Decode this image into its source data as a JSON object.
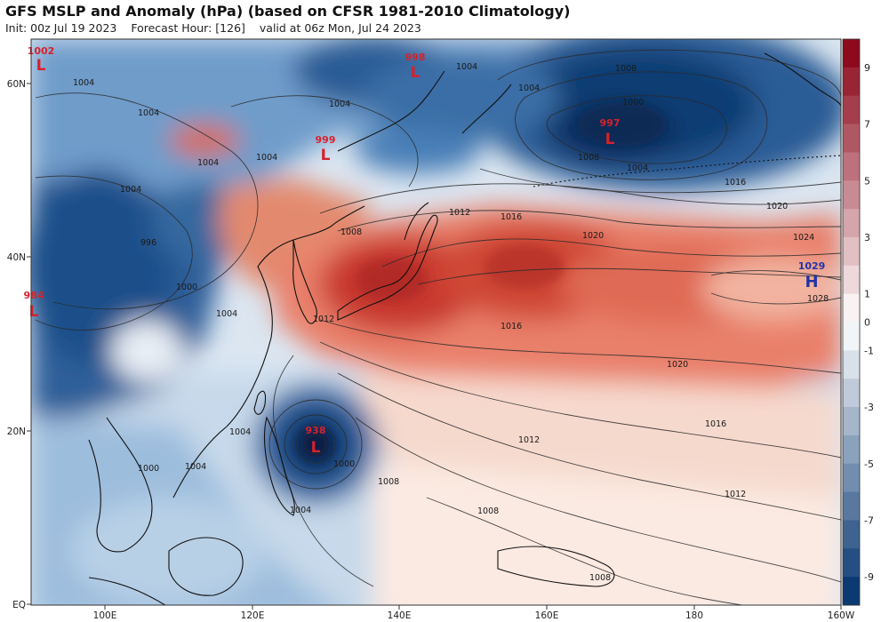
{
  "header": {
    "title": "GFS MSLP and Anomaly (hPa) (based on CFSR 1981-2010 Climatology)",
    "init": "Init: 00z Jul 19 2023",
    "forecast_hour": "Forecast Hour: [126]",
    "valid": "valid at 06z Mon, Jul 24 2023"
  },
  "axes": {
    "lat_labels": [
      "60N",
      "40N",
      "20N",
      "EQ"
    ],
    "lon_labels": [
      "100E",
      "120E",
      "140E",
      "160E",
      "180",
      "160W"
    ]
  },
  "colorbar": {
    "ticks": [
      "9",
      "8",
      "7",
      "6",
      "5",
      "4",
      "3",
      "2",
      "1",
      "0",
      "-1",
      "-2",
      "-3",
      "-4",
      "-5",
      "-6",
      "-7",
      "-8",
      "-9"
    ],
    "labeled_ticks": [
      "9",
      "7",
      "5",
      "3",
      "1",
      "0",
      "-1",
      "-3",
      "-5",
      "-7",
      "-9"
    ],
    "low_color": "#0b3a73",
    "high_color": "#8c0a1c",
    "neutral_color": "#ffffff"
  },
  "pressure_centers": [
    {
      "type": "L",
      "value": "1002",
      "color": "#d8212b"
    },
    {
      "type": "L",
      "value": "998",
      "color": "#d8212b"
    },
    {
      "type": "L",
      "value": "999",
      "color": "#d8212b"
    },
    {
      "type": "L",
      "value": "997",
      "color": "#d8212b"
    },
    {
      "type": "L",
      "value": "984",
      "color": "#d8212b"
    },
    {
      "type": "L",
      "value": "938",
      "color": "#d8212b"
    },
    {
      "type": "H",
      "value": "1029",
      "color": "#2233a8"
    }
  ],
  "isobar_labels": [
    "1004",
    "1004",
    "1004",
    "1004",
    "1004",
    "1004",
    "1008",
    "1000",
    "1008",
    "1004",
    "1004",
    "1000",
    "1004",
    "996",
    "1004",
    "1012",
    "1016",
    "1016",
    "1020",
    "1020",
    "1024",
    "1028",
    "1008",
    "1012",
    "1016",
    "1016",
    "1020",
    "1012",
    "1012",
    "1008",
    "1004",
    "1004",
    "1000",
    "1008",
    "1008",
    "1004",
    "1000"
  ]
}
